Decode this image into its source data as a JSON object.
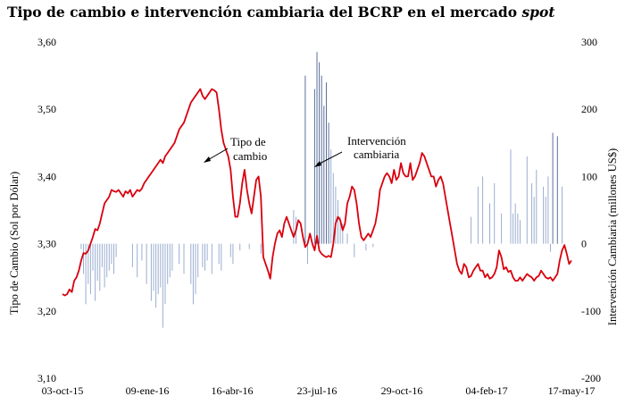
{
  "chart_data": {
    "type": "line+bar",
    "title_main": "Tipo de cambio e intervención cambiaria del BCRP en el mercado ",
    "title_italic": "spot",
    "y_left_label": "Tipo de Cambio (Sol por Dólar)",
    "y_right_label": "Intervención Cambiaria (millones US$)",
    "y_left_lim": [
      3.1,
      3.6
    ],
    "y_right_lim": [
      -200,
      300
    ],
    "y_left_ticks": [
      "3,60",
      "3,50",
      "3,40",
      "3,30",
      "3,20",
      "3,10"
    ],
    "y_right_ticks": [
      "300",
      "200",
      "100",
      "0",
      "-100",
      "-200"
    ],
    "x_ticks": [
      "03-oct-15",
      "09-ene-16",
      "16-abr-16",
      "23-jul-16",
      "29-oct-16",
      "04-feb-17",
      "17-may-17"
    ],
    "annotations": [
      {
        "line1": "Tipo de",
        "line2": "cambio"
      },
      {
        "line1": "Intervención",
        "line2": "cambiaria"
      }
    ],
    "colors": {
      "exchange_rate": "#d9000d",
      "intervention": "#5a6f9c",
      "intervention_light": "#9aaed0"
    },
    "series": [
      {
        "name": "Tipo de cambio",
        "values": [
          3.225,
          3.223,
          3.225,
          3.232,
          3.228,
          3.245,
          3.25,
          3.26,
          3.275,
          3.286,
          3.285,
          3.29,
          3.3,
          3.31,
          3.322,
          3.32,
          3.33,
          3.345,
          3.36,
          3.365,
          3.37,
          3.38,
          3.378,
          3.377,
          3.38,
          3.375,
          3.37,
          3.378,
          3.375,
          3.38,
          3.37,
          3.375,
          3.38,
          3.378,
          3.382,
          3.39,
          3.395,
          3.4,
          3.405,
          3.41,
          3.415,
          3.42,
          3.425,
          3.42,
          3.43,
          3.435,
          3.44,
          3.445,
          3.45,
          3.46,
          3.47,
          3.475,
          3.48,
          3.49,
          3.5,
          3.51,
          3.515,
          3.52,
          3.525,
          3.53,
          3.52,
          3.515,
          3.52,
          3.525,
          3.53,
          3.528,
          3.525,
          3.5,
          3.47,
          3.45,
          3.44,
          3.43,
          3.41,
          3.37,
          3.34,
          3.34,
          3.36,
          3.39,
          3.41,
          3.38,
          3.36,
          3.345,
          3.37,
          3.395,
          3.4,
          3.37,
          3.28,
          3.27,
          3.26,
          3.248,
          3.28,
          3.3,
          3.315,
          3.32,
          3.31,
          3.33,
          3.34,
          3.33,
          3.32,
          3.31,
          3.32,
          3.335,
          3.33,
          3.31,
          3.295,
          3.3,
          3.315,
          3.3,
          3.29,
          3.312,
          3.29,
          3.285,
          3.282,
          3.28,
          3.282,
          3.28,
          3.3,
          3.33,
          3.34,
          3.335,
          3.32,
          3.33,
          3.36,
          3.37,
          3.385,
          3.38,
          3.36,
          3.33,
          3.31,
          3.305,
          3.31,
          3.315,
          3.31,
          3.32,
          3.33,
          3.35,
          3.38,
          3.39,
          3.4,
          3.405,
          3.4,
          3.39,
          3.41,
          3.395,
          3.4,
          3.42,
          3.405,
          3.4,
          3.4,
          3.42,
          3.395,
          3.4,
          3.41,
          3.42,
          3.435,
          3.43,
          3.42,
          3.41,
          3.4,
          3.4,
          3.385,
          3.395,
          3.4,
          3.39,
          3.37,
          3.35,
          3.33,
          3.31,
          3.29,
          3.27,
          3.26,
          3.255,
          3.27,
          3.265,
          3.25,
          3.252,
          3.26,
          3.265,
          3.27,
          3.26,
          3.26,
          3.25,
          3.255,
          3.248,
          3.25,
          3.255,
          3.265,
          3.29,
          3.28,
          3.262,
          3.265,
          3.258,
          3.26,
          3.25,
          3.245,
          3.245,
          3.25,
          3.245,
          3.25,
          3.255,
          3.252,
          3.25,
          3.245,
          3.25,
          3.252,
          3.26,
          3.255,
          3.25,
          3.248,
          3.25,
          3.245,
          3.25,
          3.255,
          3.275,
          3.29,
          3.298,
          3.285,
          3.27,
          3.275
        ]
      },
      {
        "name": "Intervención cambiaria",
        "points": [
          [
            8,
            -8
          ],
          [
            9,
            -45
          ],
          [
            10,
            -90
          ],
          [
            11,
            -60
          ],
          [
            12,
            -75
          ],
          [
            13,
            -40
          ],
          [
            14,
            -85
          ],
          [
            15,
            -55
          ],
          [
            16,
            -70
          ],
          [
            17,
            -35
          ],
          [
            18,
            -65
          ],
          [
            19,
            -50
          ],
          [
            20,
            -40
          ],
          [
            21,
            -30
          ],
          [
            22,
            -45
          ],
          [
            23,
            -20
          ],
          [
            30,
            -35
          ],
          [
            32,
            -50
          ],
          [
            34,
            -25
          ],
          [
            36,
            -60
          ],
          [
            38,
            -85
          ],
          [
            39,
            -70
          ],
          [
            40,
            -95
          ],
          [
            41,
            -75
          ],
          [
            42,
            -65
          ],
          [
            43,
            -125
          ],
          [
            44,
            -90
          ],
          [
            45,
            -60
          ],
          [
            46,
            -50
          ],
          [
            47,
            -40
          ],
          [
            50,
            -30
          ],
          [
            52,
            -45
          ],
          [
            55,
            -60
          ],
          [
            56,
            -90
          ],
          [
            57,
            -75
          ],
          [
            58,
            -50
          ],
          [
            60,
            -35
          ],
          [
            61,
            -40
          ],
          [
            62,
            -25
          ],
          [
            64,
            -45
          ],
          [
            67,
            -30
          ],
          [
            68,
            -40
          ],
          [
            72,
            -20
          ],
          [
            73,
            -30
          ],
          [
            76,
            -10
          ],
          [
            80,
            -8
          ],
          [
            85,
            -15
          ],
          [
            86,
            -5
          ],
          [
            99,
            50
          ],
          [
            100,
            40
          ],
          [
            104,
            250
          ],
          [
            105,
            -30
          ],
          [
            108,
            230
          ],
          [
            109,
            285
          ],
          [
            110,
            270
          ],
          [
            111,
            250
          ],
          [
            112,
            205
          ],
          [
            113,
            240
          ],
          [
            114,
            180
          ],
          [
            115,
            140
          ],
          [
            116,
            105
          ],
          [
            117,
            85
          ],
          [
            118,
            65
          ],
          [
            119,
            40
          ],
          [
            120,
            30
          ],
          [
            122,
            15
          ],
          [
            125,
            -20
          ],
          [
            130,
            -10
          ],
          [
            133,
            -5
          ],
          [
            175,
            40
          ],
          [
            178,
            85
          ],
          [
            180,
            100
          ],
          [
            183,
            60
          ],
          [
            185,
            90
          ],
          [
            188,
            45
          ],
          [
            192,
            140
          ],
          [
            193,
            45
          ],
          [
            194,
            60
          ],
          [
            195,
            45
          ],
          [
            196,
            35
          ],
          [
            199,
            130
          ],
          [
            201,
            90
          ],
          [
            202,
            70
          ],
          [
            203,
            110
          ],
          [
            206,
            85
          ],
          [
            207,
            70
          ],
          [
            208,
            100
          ],
          [
            209,
            -12
          ],
          [
            210,
            165
          ],
          [
            212,
            160
          ],
          [
            214,
            85
          ]
        ]
      }
    ]
  }
}
